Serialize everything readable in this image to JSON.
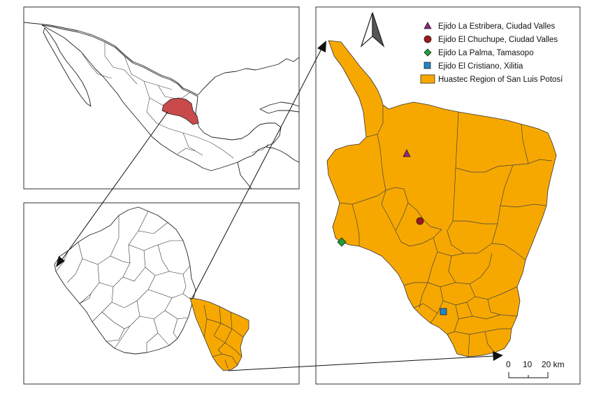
{
  "legend": {
    "items": [
      {
        "label": "Ejido La Estribera, Ciudad Valles",
        "shape": "triangle",
        "color": "#8b2a78"
      },
      {
        "label": "Ejido El Chuchupe, Ciudad Valles",
        "shape": "circle",
        "color": "#a01818"
      },
      {
        "label": "Ejido La Palma, Tamasopo",
        "shape": "diamond",
        "color": "#1f9e3a"
      },
      {
        "label": "Ejido El Cristiano, Xilitia",
        "shape": "square",
        "color": "#1f86c8"
      },
      {
        "label": "Huastec Region of San Luis Potosí",
        "shape": "rect",
        "color": "#f7a800"
      }
    ]
  },
  "scale_bar": {
    "label_0": "0",
    "label_10": "10",
    "label_20": "20 km"
  },
  "colors": {
    "state_highlight": "#c84a4a",
    "region_fill": "#f7a800"
  },
  "icons": {
    "north_arrow": "north-arrow-icon"
  }
}
